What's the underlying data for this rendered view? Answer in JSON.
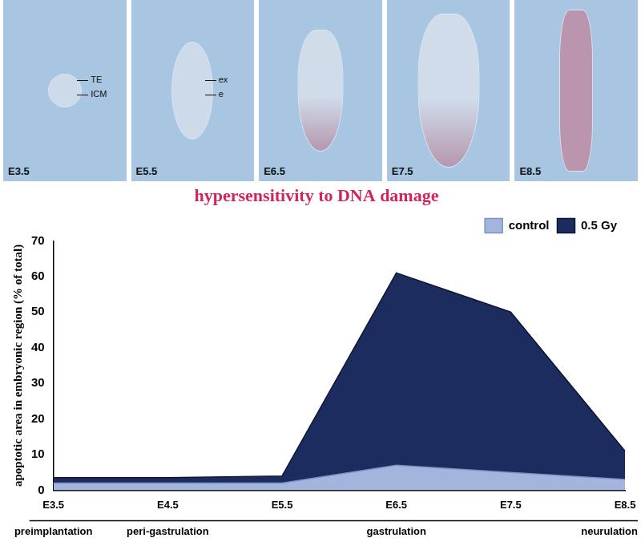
{
  "chart_data": {
    "type": "area",
    "title": "hypersensitivity to DNA damage",
    "y_label": "apoptotic area in embryonic region (% of total)",
    "categories": [
      "E3.5",
      "E4.5",
      "E5.5",
      "E6.5",
      "E7.5",
      "E8.5"
    ],
    "series": [
      {
        "name": "control",
        "color": "#a3b5dd",
        "values": [
          2,
          2,
          2,
          7,
          5,
          3
        ]
      },
      {
        "name": "0.5 Gy",
        "color": "#1d2c5e",
        "values": [
          3.5,
          3.5,
          4,
          61,
          50,
          11
        ]
      }
    ],
    "ylim": [
      0,
      70
    ],
    "yticks": [
      0,
      10,
      20,
      30,
      40,
      50,
      60,
      70
    ],
    "grid": false,
    "legend": "top right",
    "stages": [
      {
        "label": "preimplantation",
        "category": "E3.5"
      },
      {
        "label": "peri-gastrulation",
        "category": "E4.5"
      },
      {
        "label": "gastrulation",
        "category": "E6.5"
      },
      {
        "label": "neurulation",
        "category": "E8.5"
      }
    ]
  },
  "panels": [
    {
      "label": "E3.5",
      "annotations": [
        "TE",
        "ICM"
      ]
    },
    {
      "label": "E5.5",
      "annotations": [
        "ex",
        "e"
      ]
    },
    {
      "label": "E6.5",
      "annotations": []
    },
    {
      "label": "E7.5",
      "annotations": []
    },
    {
      "label": "E8.5",
      "annotations": []
    }
  ]
}
